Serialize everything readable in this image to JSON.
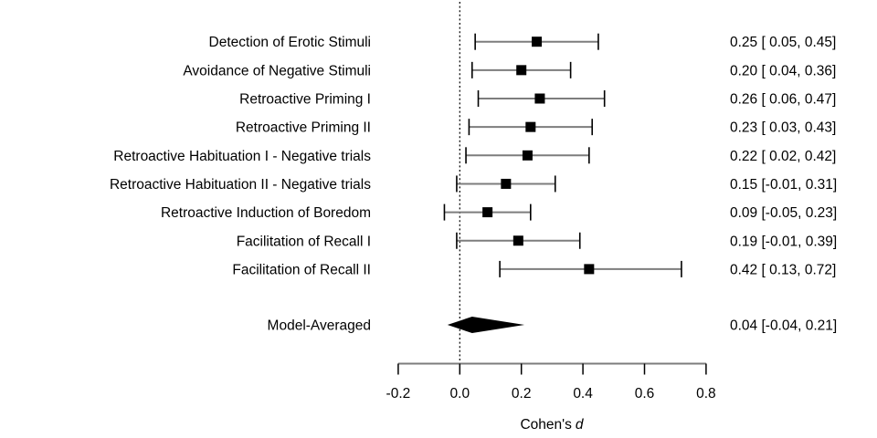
{
  "chart_data": {
    "type": "scatter",
    "variant": "forest-plot",
    "title": "",
    "xlabel_prefix": "Cohen's",
    "xlabel_symbol": "d",
    "xlim": [
      -0.2,
      0.8
    ],
    "x_ticks": [
      -0.2,
      0.0,
      0.2,
      0.4,
      0.6,
      0.8
    ],
    "reference_line_x": 0.0,
    "grid": false,
    "legend": "none",
    "studies": [
      {
        "label": "Detection of Erotic Stimuli",
        "estimate": 0.25,
        "ci_lower": 0.05,
        "ci_upper": 0.45,
        "annotation": "0.25 [ 0.05, 0.45]"
      },
      {
        "label": "Avoidance of Negative Stimuli",
        "estimate": 0.2,
        "ci_lower": 0.04,
        "ci_upper": 0.36,
        "annotation": "0.20 [ 0.04, 0.36]"
      },
      {
        "label": "Retroactive Priming I",
        "estimate": 0.26,
        "ci_lower": 0.06,
        "ci_upper": 0.47,
        "annotation": "0.26 [ 0.06, 0.47]"
      },
      {
        "label": "Retroactive Priming II",
        "estimate": 0.23,
        "ci_lower": 0.03,
        "ci_upper": 0.43,
        "annotation": "0.23 [ 0.03, 0.43]"
      },
      {
        "label": "Retroactive Habituation I - Negative trials",
        "estimate": 0.22,
        "ci_lower": 0.02,
        "ci_upper": 0.42,
        "annotation": "0.22 [ 0.02, 0.42]"
      },
      {
        "label": "Retroactive Habituation II - Negative trials",
        "estimate": 0.15,
        "ci_lower": -0.01,
        "ci_upper": 0.31,
        "annotation": "0.15 [-0.01, 0.31]"
      },
      {
        "label": "Retroactive Induction of Boredom",
        "estimate": 0.09,
        "ci_lower": -0.05,
        "ci_upper": 0.23,
        "annotation": "0.09 [-0.05, 0.23]"
      },
      {
        "label": "Facilitation of Recall I",
        "estimate": 0.19,
        "ci_lower": -0.01,
        "ci_upper": 0.39,
        "annotation": "0.19 [-0.01, 0.39]"
      },
      {
        "label": "Facilitation of Recall II",
        "estimate": 0.42,
        "ci_lower": 0.13,
        "ci_upper": 0.72,
        "annotation": "0.42 [ 0.13, 0.72]"
      }
    ],
    "summary": {
      "label": "Model-Averaged",
      "estimate": 0.04,
      "ci_lower": -0.04,
      "ci_upper": 0.21,
      "annotation": "0.04 [-0.04, 0.21]"
    },
    "colors": {
      "text": "#000000",
      "marker": "#000000",
      "ci_line": "#7d7d7d",
      "cap": "#000000",
      "axis_line": "#7d7d7d",
      "tick": "#000000",
      "reference_line": "#000000",
      "diamond": "#000000",
      "background": "#ffffff"
    }
  }
}
